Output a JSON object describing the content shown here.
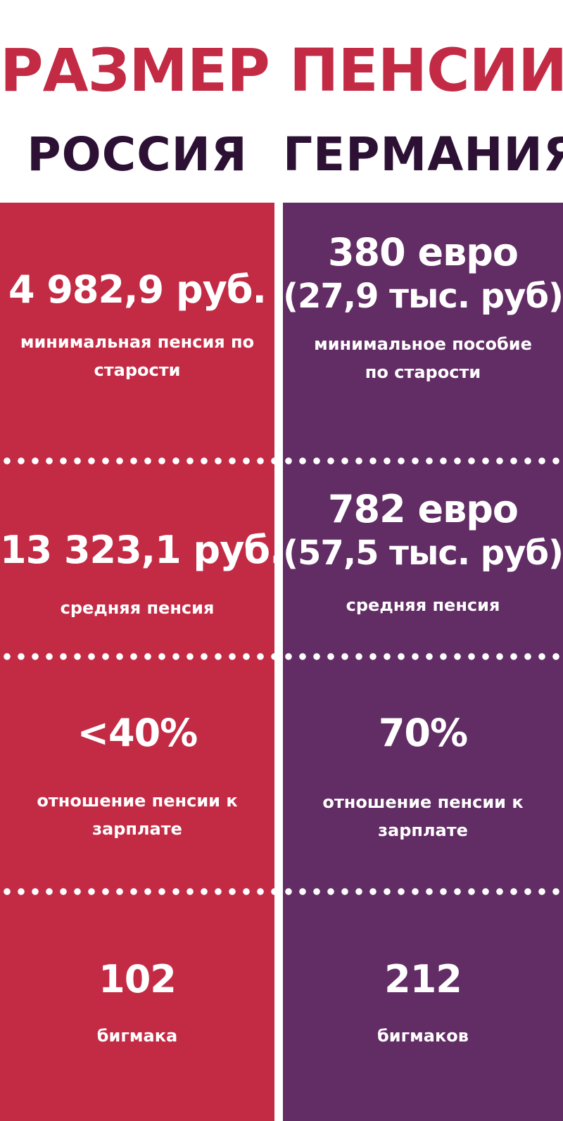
{
  "title": "РАЗМЕР ПЕНСИИ",
  "countries": {
    "left": "РОССИЯ",
    "right": "ГЕРМАНИЯ"
  },
  "colors": {
    "title": "#c32b45",
    "country_text": "#2d1135",
    "russia_panel": "#c32b45",
    "germany_panel": "#622c64",
    "text_on_panel": "#ffffff"
  },
  "rows": [
    {
      "russia": {
        "value": "4 982,9 руб.",
        "caption_line1": "минимальная пенсия по",
        "caption_line2": "старости"
      },
      "germany": {
        "value": "380 евро",
        "value_sub": "(27,9 тыс. руб)",
        "caption_line1": "минимальное пособие",
        "caption_line2": "по старости"
      }
    },
    {
      "russia": {
        "value": "13 323,1 руб.",
        "caption_line1": "средняя пенсия"
      },
      "germany": {
        "value": "782 евро",
        "value_sub": "(57,5 тыс. руб)",
        "caption_line1": "средняя пенсия"
      }
    },
    {
      "russia": {
        "value": "<40%",
        "caption_line1": "отношение пенсии к",
        "caption_line2": "зарплате"
      },
      "germany": {
        "value": "70%",
        "caption_line1": "отношение пенсии к",
        "caption_line2": "зарплате"
      }
    },
    {
      "russia": {
        "value": "102",
        "caption_line1": "бигмака"
      },
      "germany": {
        "value": "212",
        "caption_line1": "бигмаков"
      }
    }
  ]
}
